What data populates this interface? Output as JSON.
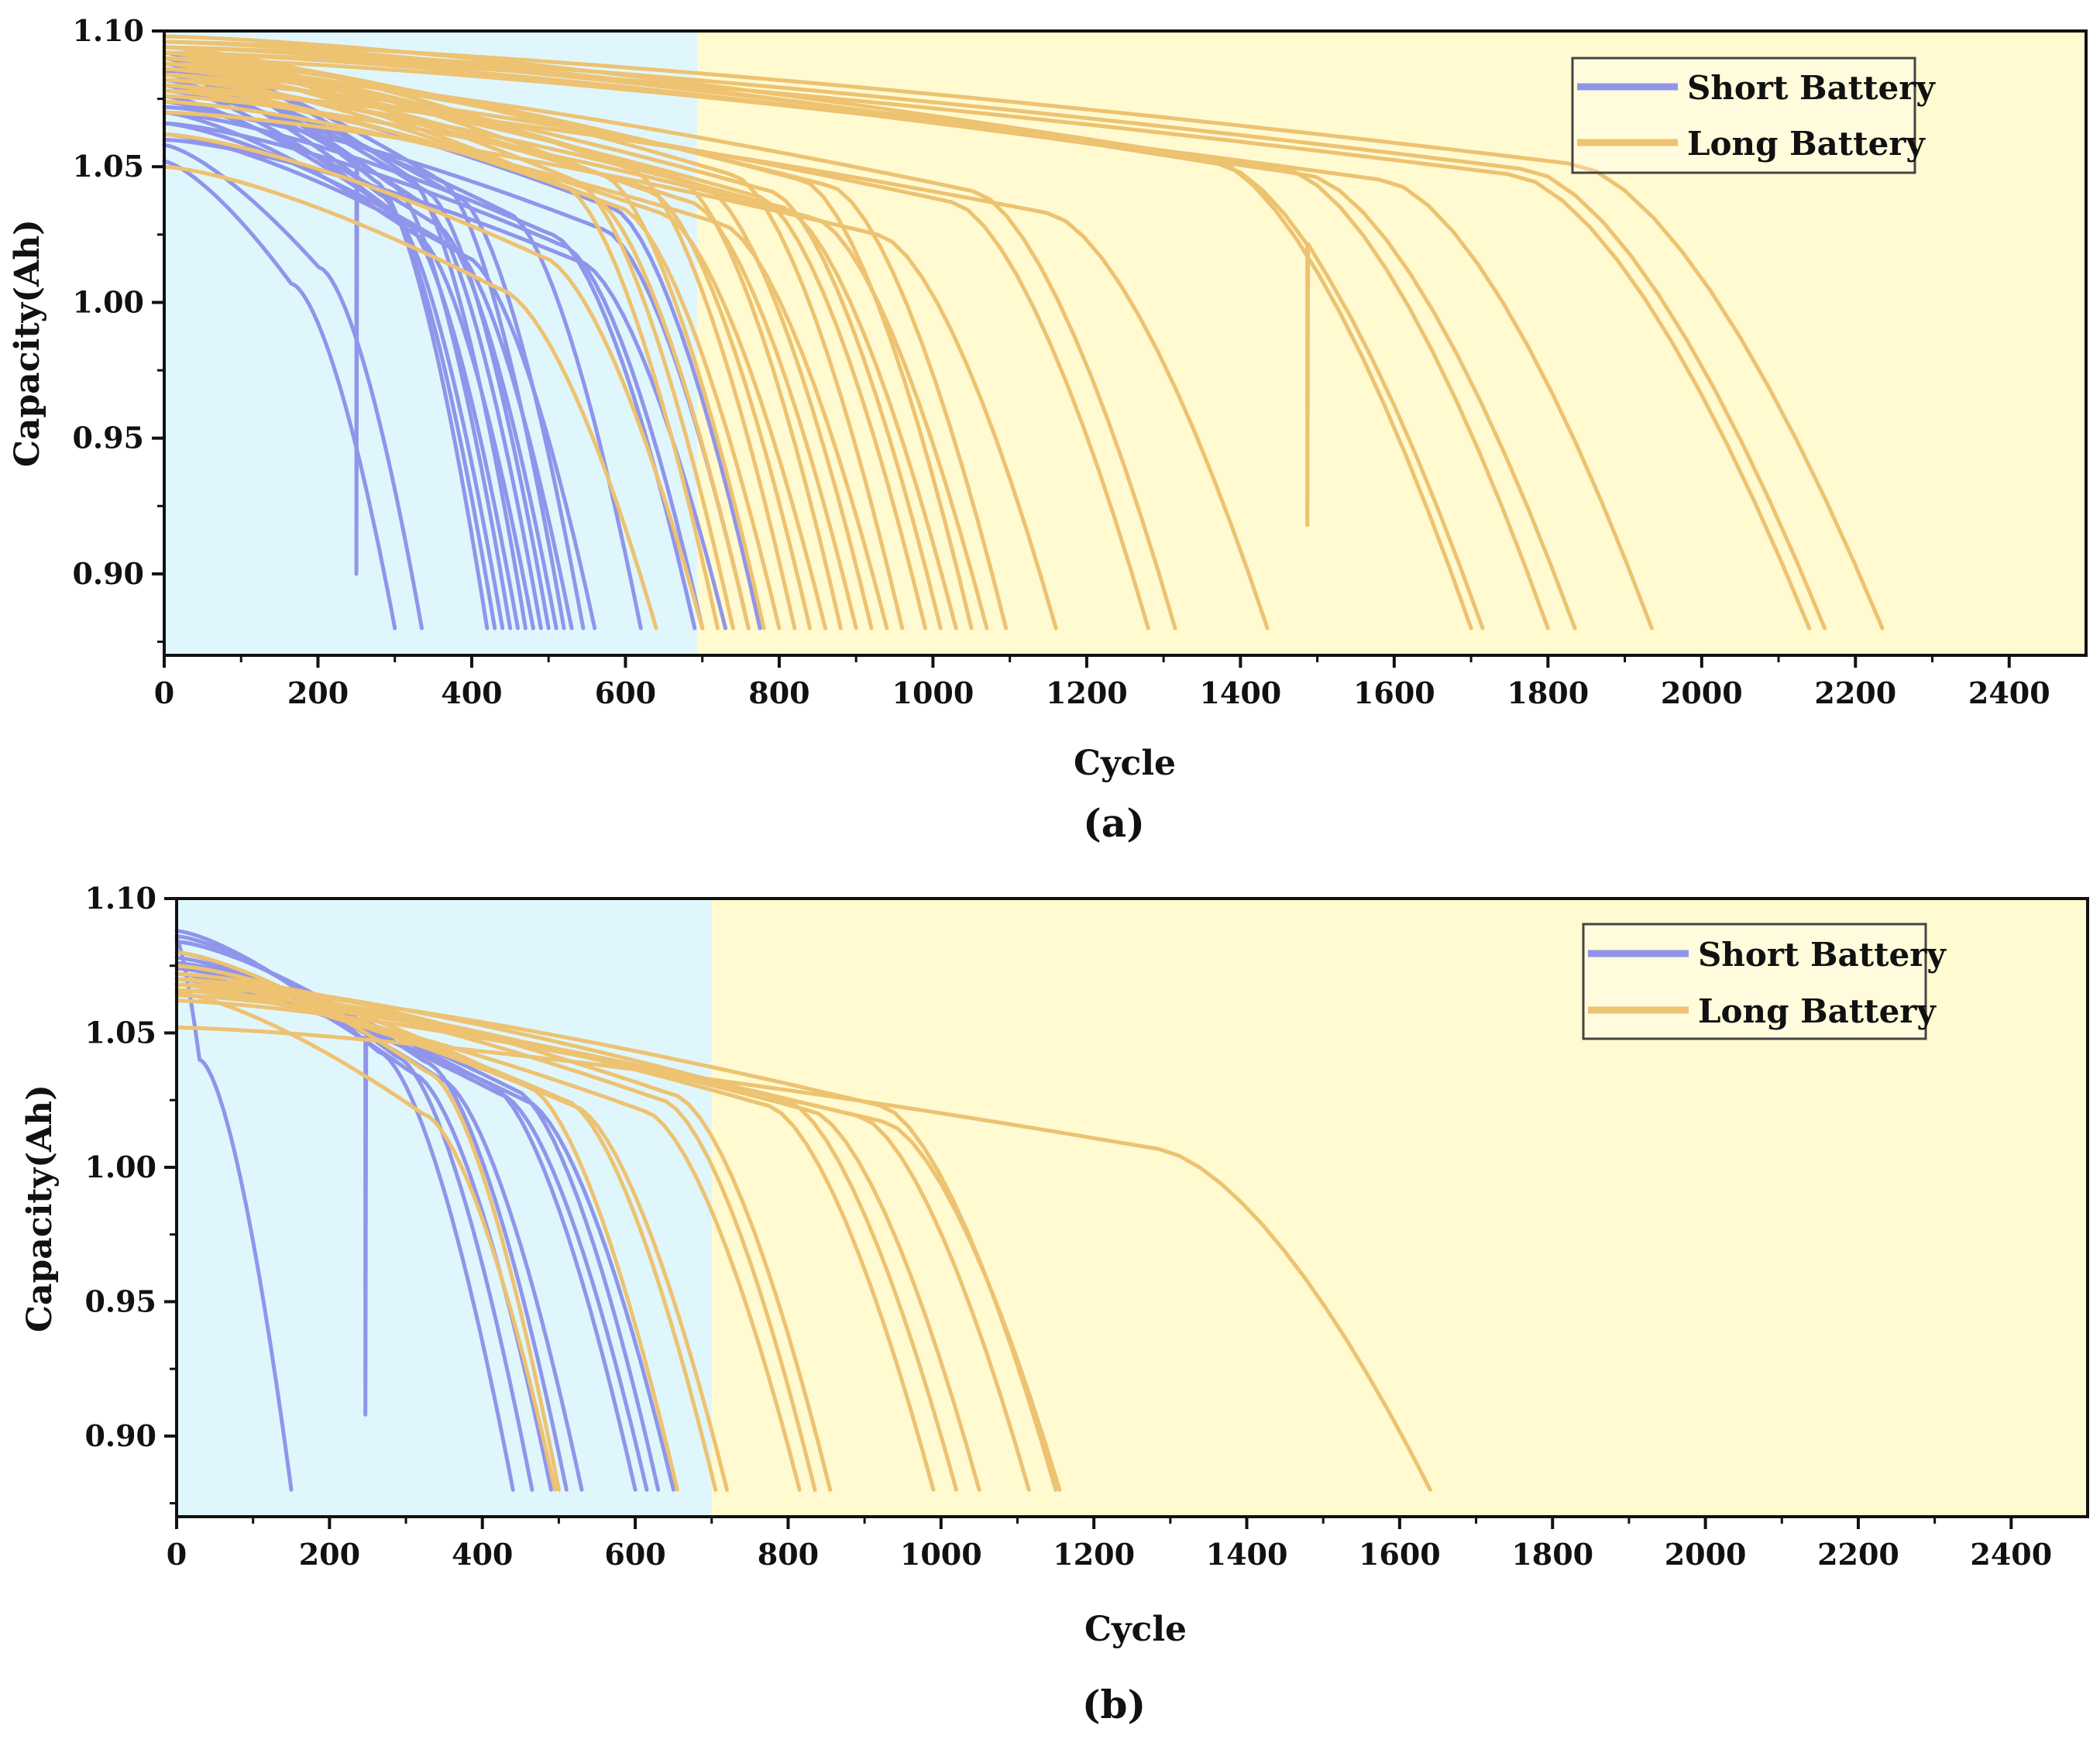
{
  "colors": {
    "short": "#8f95ea",
    "long": "#edc271",
    "short_region": "#e0f6fd",
    "long_region": "#fffad0",
    "axis": "#111111"
  },
  "chart_data": [
    {
      "type": "line",
      "panel": "a",
      "caption": "(a)",
      "xlabel": "Cycle",
      "ylabel": "Capacity(Ah)",
      "xlim": [
        0,
        2500
      ],
      "ylim": [
        0.87,
        1.1
      ],
      "xticks": [
        0,
        200,
        400,
        600,
        800,
        1000,
        1200,
        1400,
        1600,
        1800,
        2000,
        2200,
        2400
      ],
      "yticks": [
        0.9,
        0.95,
        1.0,
        1.05,
        1.1
      ],
      "ytick_labels": [
        "0.90",
        "0.95",
        "1.00",
        "1.05",
        "1.10"
      ],
      "regions": [
        {
          "name": "short",
          "from": 0,
          "to": 700
        },
        {
          "name": "long",
          "from": 700,
          "to": 2500
        }
      ],
      "legend": {
        "position": "top-right",
        "entries": [
          {
            "key": "short",
            "label": "Short Battery"
          },
          {
            "key": "long",
            "label": "Long Battery"
          }
        ]
      },
      "series_short": [
        {
          "start": 1.052,
          "end_cycle": 300,
          "knee": 0.55
        },
        {
          "start": 1.058,
          "end_cycle": 335,
          "knee": 0.6
        },
        {
          "start": 1.09,
          "end_cycle": 420,
          "knee": 0.65,
          "glitch": {
            "x": 250,
            "y": 0.9
          }
        },
        {
          "start": 1.085,
          "end_cycle": 430,
          "knee": 0.65
        },
        {
          "start": 1.08,
          "end_cycle": 440,
          "knee": 0.66
        },
        {
          "start": 1.088,
          "end_cycle": 450,
          "knee": 0.66
        },
        {
          "start": 1.076,
          "end_cycle": 460,
          "knee": 0.67
        },
        {
          "start": 1.092,
          "end_cycle": 470,
          "knee": 0.67
        },
        {
          "start": 1.07,
          "end_cycle": 480,
          "knee": 0.68
        },
        {
          "start": 1.082,
          "end_cycle": 490,
          "knee": 0.68
        },
        {
          "start": 1.086,
          "end_cycle": 500,
          "knee": 0.68
        },
        {
          "start": 1.074,
          "end_cycle": 510,
          "knee": 0.69
        },
        {
          "start": 1.09,
          "end_cycle": 520,
          "knee": 0.69
        },
        {
          "start": 1.066,
          "end_cycle": 530,
          "knee": 0.7
        },
        {
          "start": 1.084,
          "end_cycle": 545,
          "knee": 0.7
        },
        {
          "start": 1.062,
          "end_cycle": 560,
          "knee": 0.7
        },
        {
          "start": 1.078,
          "end_cycle": 620,
          "knee": 0.72
        },
        {
          "start": 1.07,
          "end_cycle": 690,
          "knee": 0.73
        },
        {
          "start": 1.066,
          "end_cycle": 700,
          "knee": 0.74
        },
        {
          "start": 1.06,
          "end_cycle": 730,
          "knee": 0.74
        },
        {
          "start": 1.072,
          "end_cycle": 760,
          "knee": 0.75
        },
        {
          "start": 1.08,
          "end_cycle": 775,
          "knee": 0.75
        }
      ],
      "series_long": [
        {
          "start": 1.05,
          "end_cycle": 640,
          "knee": 0.68
        },
        {
          "start": 1.062,
          "end_cycle": 700,
          "knee": 0.7
        },
        {
          "start": 1.088,
          "end_cycle": 720,
          "knee": 0.72
        },
        {
          "start": 1.09,
          "end_cycle": 740,
          "knee": 0.72
        },
        {
          "start": 1.084,
          "end_cycle": 760,
          "knee": 0.73
        },
        {
          "start": 1.092,
          "end_cycle": 780,
          "knee": 0.73
        },
        {
          "start": 1.08,
          "end_cycle": 800,
          "knee": 0.74
        },
        {
          "start": 1.094,
          "end_cycle": 820,
          "knee": 0.74
        },
        {
          "start": 1.086,
          "end_cycle": 840,
          "knee": 0.75
        },
        {
          "start": 1.078,
          "end_cycle": 860,
          "knee": 0.75
        },
        {
          "start": 1.09,
          "end_cycle": 880,
          "knee": 0.76
        },
        {
          "start": 1.082,
          "end_cycle": 900,
          "knee": 0.76
        },
        {
          "start": 1.088,
          "end_cycle": 920,
          "knee": 0.76
        },
        {
          "start": 1.074,
          "end_cycle": 940,
          "knee": 0.77
        },
        {
          "start": 1.092,
          "end_cycle": 960,
          "knee": 0.77
        },
        {
          "start": 1.084,
          "end_cycle": 990,
          "knee": 0.78
        },
        {
          "start": 1.086,
          "end_cycle": 1010,
          "knee": 0.78
        },
        {
          "start": 1.08,
          "end_cycle": 1030,
          "knee": 0.78
        },
        {
          "start": 1.09,
          "end_cycle": 1050,
          "knee": 0.79
        },
        {
          "start": 1.076,
          "end_cycle": 1070,
          "knee": 0.79
        },
        {
          "start": 1.088,
          "end_cycle": 1095,
          "knee": 0.79
        },
        {
          "start": 1.07,
          "end_cycle": 1160,
          "knee": 0.8
        },
        {
          "start": 1.082,
          "end_cycle": 1280,
          "knee": 0.8
        },
        {
          "start": 1.086,
          "end_cycle": 1315,
          "knee": 0.8
        },
        {
          "start": 1.078,
          "end_cycle": 1435,
          "knee": 0.8
        },
        {
          "start": 1.098,
          "end_cycle": 1700,
          "knee": 0.8
        },
        {
          "start": 1.096,
          "end_cycle": 1715,
          "knee": 0.8,
          "glitch": {
            "x": 1487,
            "y": 0.918
          }
        },
        {
          "start": 1.094,
          "end_cycle": 1800,
          "knee": 0.81
        },
        {
          "start": 1.092,
          "end_cycle": 1835,
          "knee": 0.81
        },
        {
          "start": 1.09,
          "end_cycle": 1935,
          "knee": 0.82
        },
        {
          "start": 1.092,
          "end_cycle": 2140,
          "knee": 0.82
        },
        {
          "start": 1.094,
          "end_cycle": 2160,
          "knee": 0.82
        },
        {
          "start": 1.096,
          "end_cycle": 2235,
          "knee": 0.82
        }
      ]
    },
    {
      "type": "line",
      "panel": "b",
      "caption": "(b)",
      "xlabel": "Cycle",
      "ylabel": "Capacity(Ah)",
      "xlim": [
        0,
        2500
      ],
      "ylim": [
        0.87,
        1.1
      ],
      "xticks": [
        0,
        200,
        400,
        600,
        800,
        1000,
        1200,
        1400,
        1600,
        1800,
        2000,
        2200,
        2400
      ],
      "yticks": [
        0.9,
        0.95,
        1.0,
        1.05,
        1.1
      ],
      "ytick_labels": [
        "0.90",
        "0.95",
        "1.00",
        "1.05",
        "1.10"
      ],
      "regions": [
        {
          "name": "short",
          "from": 0,
          "to": 700
        },
        {
          "name": "long",
          "from": 700,
          "to": 2500
        }
      ],
      "legend": {
        "position": "top-right",
        "entries": [
          {
            "key": "short",
            "label": "Short Battery"
          },
          {
            "key": "long",
            "label": "Long Battery"
          }
        ]
      },
      "series_short": [
        {
          "start": 1.085,
          "end_cycle": 150,
          "knee": 0.2
        },
        {
          "start": 1.088,
          "end_cycle": 440,
          "knee": 0.6,
          "glitch": {
            "x": 247,
            "y": 0.908
          }
        },
        {
          "start": 1.086,
          "end_cycle": 465,
          "knee": 0.62
        },
        {
          "start": 1.08,
          "end_cycle": 490,
          "knee": 0.63
        },
        {
          "start": 1.084,
          "end_cycle": 510,
          "knee": 0.64
        },
        {
          "start": 1.078,
          "end_cycle": 530,
          "knee": 0.65
        },
        {
          "start": 1.076,
          "end_cycle": 600,
          "knee": 0.68
        },
        {
          "start": 1.072,
          "end_cycle": 615,
          "knee": 0.69
        },
        {
          "start": 1.074,
          "end_cycle": 630,
          "knee": 0.7
        },
        {
          "start": 1.07,
          "end_cycle": 650,
          "knee": 0.7
        }
      ],
      "series_long": [
        {
          "start": 1.065,
          "end_cycle": 495,
          "knee": 0.65
        },
        {
          "start": 1.08,
          "end_cycle": 500,
          "knee": 0.66
        },
        {
          "start": 1.075,
          "end_cycle": 655,
          "knee": 0.7
        },
        {
          "start": 1.07,
          "end_cycle": 705,
          "knee": 0.72
        },
        {
          "start": 1.068,
          "end_cycle": 720,
          "knee": 0.72
        },
        {
          "start": 1.066,
          "end_cycle": 815,
          "knee": 0.75
        },
        {
          "start": 1.07,
          "end_cycle": 835,
          "knee": 0.76
        },
        {
          "start": 1.072,
          "end_cycle": 855,
          "knee": 0.76
        },
        {
          "start": 1.068,
          "end_cycle": 990,
          "knee": 0.78
        },
        {
          "start": 1.07,
          "end_cycle": 1020,
          "knee": 0.78
        },
        {
          "start": 1.066,
          "end_cycle": 1050,
          "knee": 0.79
        },
        {
          "start": 1.064,
          "end_cycle": 1115,
          "knee": 0.8
        },
        {
          "start": 1.068,
          "end_cycle": 1150,
          "knee": 0.8
        },
        {
          "start": 1.062,
          "end_cycle": 1155,
          "knee": 0.8
        },
        {
          "start": 1.052,
          "end_cycle": 1640,
          "knee": 0.78
        }
      ]
    }
  ]
}
